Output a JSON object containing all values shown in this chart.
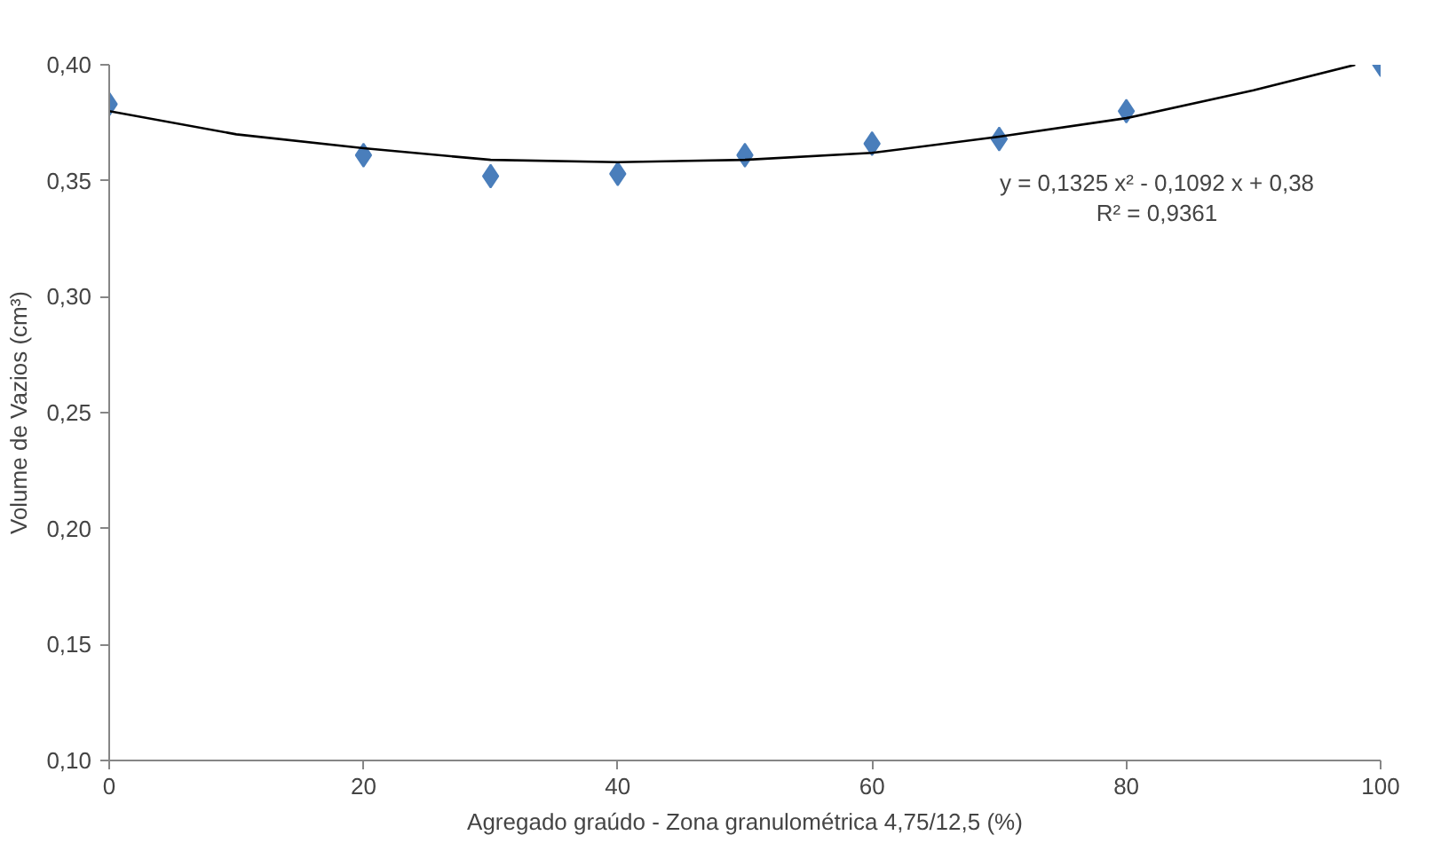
{
  "chart_data": {
    "type": "scatter",
    "xlabel": "Agregado graúdo - Zona granulométrica 4,75/12,5 (%)",
    "ylabel": "Volume de Vazios (cm³)",
    "x": [
      0,
      20,
      30,
      40,
      50,
      60,
      70,
      80,
      100
    ],
    "series": [
      {
        "color": "#4a7ebb",
        "marker": "diamond",
        "values": [
          0.383,
          0.361,
          0.352,
          0.353,
          0.361,
          0.366,
          0.368,
          0.38,
          0.4
        ]
      },
      {
        "type": "line",
        "color": "#000000",
        "marker": "none",
        "line_style": "solid",
        "x": [
          0,
          10,
          20,
          30,
          40,
          50,
          60,
          70,
          80,
          90,
          98
        ],
        "values": [
          0.38,
          0.37,
          0.364,
          0.359,
          0.358,
          0.359,
          0.362,
          0.369,
          0.377,
          0.389,
          0.4
        ]
      }
    ],
    "xlim": [
      0,
      100
    ],
    "xticks": [
      0,
      20,
      40,
      60,
      80,
      100
    ],
    "ylim": [
      0.1,
      0.4
    ],
    "yticks": [
      {
        "value": 0.1,
        "label": "0,10"
      },
      {
        "value": 0.15,
        "label": "0,15"
      },
      {
        "value": 0.2,
        "label": "0,20"
      },
      {
        "value": 0.25,
        "label": "0,25"
      },
      {
        "value": 0.3,
        "label": "0,30"
      },
      {
        "value": 0.35,
        "label": "0,35"
      },
      {
        "value": 0.4,
        "label": "0,40"
      }
    ],
    "annotations": [
      "y = 0,1325 x² - 0,1092 x + 0,38",
      "R² = 0,9361"
    ],
    "grid": false
  }
}
